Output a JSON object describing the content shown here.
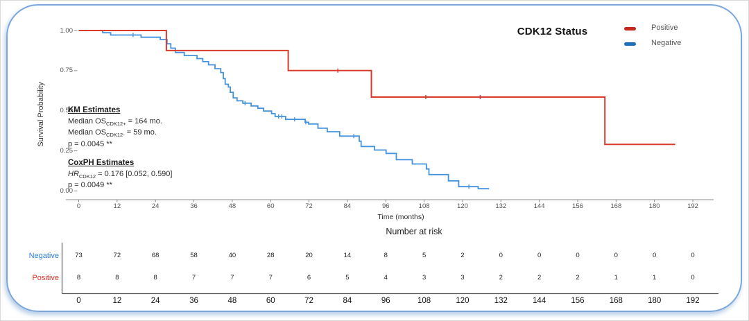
{
  "colors": {
    "positive_curve": "#D93A2C",
    "positive_swatch": "#C5281C",
    "positive_label": "#E03328",
    "negative_curve": "#4292DE",
    "negative_swatch": "#1E6FB5",
    "negative_label": "#2E7FE0",
    "frame_border": "#79A7DC",
    "axis_line": "#B3B3B3"
  },
  "legend": {
    "title": "CDK12 Status",
    "items": [
      {
        "label": "Positive",
        "color": "#C5281C"
      },
      {
        "label": "Negative",
        "color": "#1E6FB5"
      }
    ]
  },
  "y_axis": {
    "title": "Survival Probability",
    "ticks": [
      "1.00",
      "0.75",
      "0.50",
      "0.25",
      "0.00"
    ]
  },
  "x_axis": {
    "title": "Time (months)",
    "ticks": [
      0,
      12,
      24,
      36,
      48,
      60,
      72,
      84,
      96,
      108,
      120,
      132,
      144,
      156,
      168,
      180,
      192
    ]
  },
  "annotations": {
    "km": {
      "title": "KM Estimates",
      "median_pos": {
        "prefix": "Median OS",
        "sub": "CDK12+",
        "suffix": " = 164 mo."
      },
      "median_neg": {
        "prefix": "Median OS",
        "sub": "CDK12-",
        "suffix": " = 59 mo."
      },
      "p_value": "p = 0.0045 **"
    },
    "cox": {
      "title": "CoxPH Estimates",
      "hr": {
        "prefix": "HR",
        "sub": "CDK12",
        "suffix": " = 0.176 [0.052, 0.590]"
      },
      "p_value": "p = 0.0049 **"
    }
  },
  "risk_table": {
    "title": "Number at risk",
    "time_ticks": [
      0,
      12,
      24,
      36,
      48,
      60,
      72,
      84,
      96,
      108,
      120,
      132,
      144,
      156,
      168,
      180,
      192
    ],
    "rows": [
      {
        "label": "Negative",
        "color": "#2E7FE0",
        "values": [
          73,
          72,
          68,
          58,
          40,
          28,
          20,
          14,
          8,
          5,
          2,
          0,
          0,
          0,
          0,
          0,
          0
        ]
      },
      {
        "label": "Positive",
        "color": "#E03328",
        "values": [
          8,
          8,
          8,
          7,
          7,
          7,
          6,
          5,
          4,
          3,
          3,
          2,
          2,
          2,
          1,
          1,
          0
        ]
      }
    ]
  },
  "chart_data": {
    "type": "line",
    "subtype": "kaplan_meier_step",
    "title": "",
    "xlabel": "Time (months)",
    "ylabel": "Survival Probability",
    "xlim": [
      0,
      192
    ],
    "ylim": [
      0,
      1
    ],
    "x_ticks": [
      0,
      12,
      24,
      36,
      48,
      60,
      72,
      84,
      96,
      108,
      120,
      132,
      144,
      156,
      168,
      180,
      192
    ],
    "y_ticks": [
      1.0,
      0.75,
      0.5,
      0.25,
      0.0
    ],
    "grid": false,
    "legend_position": "top-right",
    "series": [
      {
        "name": "Negative",
        "color": "#4292DE",
        "steps": [
          [
            0,
            1.0
          ],
          [
            7.5,
            0.986
          ],
          [
            10,
            0.972
          ],
          [
            19.5,
            0.958
          ],
          [
            25.5,
            0.944
          ],
          [
            27.6,
            0.917
          ],
          [
            28.8,
            0.89
          ],
          [
            30.2,
            0.863
          ],
          [
            33,
            0.844
          ],
          [
            37,
            0.825
          ],
          [
            38.8,
            0.806
          ],
          [
            40.6,
            0.786
          ],
          [
            42.6,
            0.762
          ],
          [
            44.4,
            0.738
          ],
          [
            45.2,
            0.7
          ],
          [
            45.8,
            0.665
          ],
          [
            46.8,
            0.648
          ],
          [
            47.4,
            0.615
          ],
          [
            48.3,
            0.58
          ],
          [
            49.5,
            0.562
          ],
          [
            51.3,
            0.547
          ],
          [
            53.9,
            0.53
          ],
          [
            56,
            0.515
          ],
          [
            57.8,
            0.498
          ],
          [
            60.3,
            0.482
          ],
          [
            61.4,
            0.464
          ],
          [
            64.7,
            0.446
          ],
          [
            70.8,
            0.428
          ],
          [
            71.9,
            0.417
          ],
          [
            74.8,
            0.391
          ],
          [
            77.7,
            0.369
          ],
          [
            81.6,
            0.342
          ],
          [
            87.7,
            0.31
          ],
          [
            88.3,
            0.277
          ],
          [
            92.5,
            0.255
          ],
          [
            96.1,
            0.234
          ],
          [
            99.3,
            0.195
          ],
          [
            104.3,
            0.168
          ],
          [
            108.7,
            0.137
          ],
          [
            109.5,
            0.102
          ],
          [
            115.6,
            0.063
          ],
          [
            118.8,
            0.027
          ],
          [
            124.9,
            0.014
          ]
        ],
        "end_time": 128.3,
        "censor_times": [
          17,
          52,
          62.5,
          63.5,
          67.5,
          71,
          86,
          122
        ]
      },
      {
        "name": "Positive",
        "color": "#D93A2C",
        "steps": [
          [
            0,
            1.0
          ],
          [
            27.4,
            0.875
          ],
          [
            65.5,
            0.75
          ],
          [
            91.5,
            0.585
          ],
          [
            164.5,
            0.29
          ]
        ],
        "end_time": 186.5,
        "censor_times": [
          81,
          108.5,
          125.5
        ]
      }
    ]
  }
}
